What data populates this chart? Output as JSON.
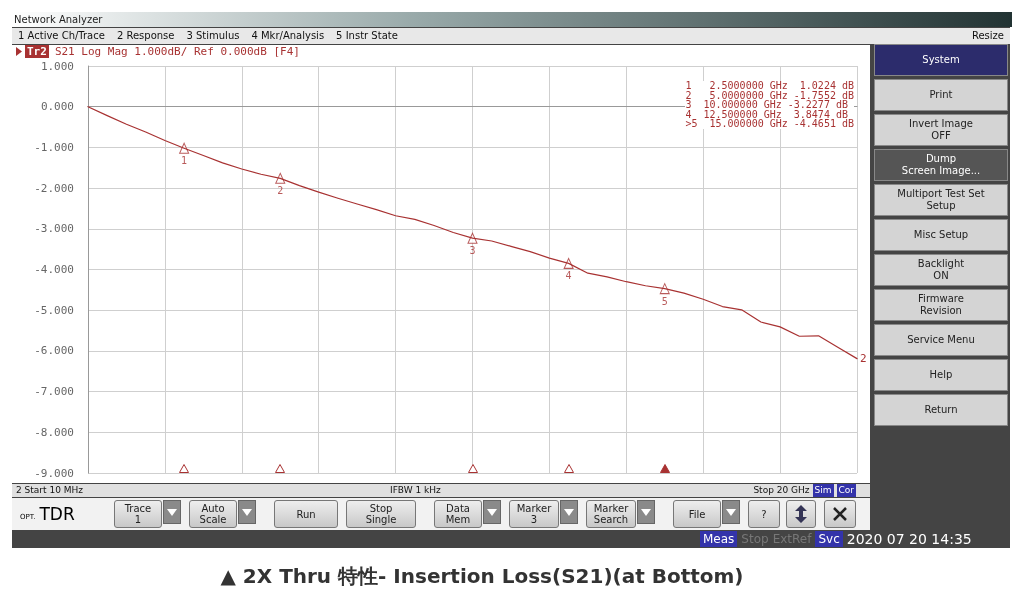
{
  "chart_data": {
    "type": "line",
    "title": "S21 Log Mag 1.000dB/ Ref 0.000dB [F4]",
    "categories": [
      null,
      null,
      null,
      null,
      null,
      null,
      null,
      null,
      null,
      null,
      null,
      null,
      null,
      null,
      null,
      null,
      null,
      null,
      null,
      null,
      null,
      null,
      null,
      null,
      null,
      null,
      null,
      null,
      null,
      null,
      null,
      null,
      null,
      null,
      null,
      null,
      null,
      null,
      null,
      null,
      null
    ],
    "series": [
      {
        "name": "2",
        "color": "#a83232",
        "values": [
          0,
          -0.22,
          -0.43,
          -0.62,
          -0.83,
          -1.02,
          -1.2,
          -1.38,
          -1.53,
          -1.66,
          -1.76,
          -1.94,
          -2.1,
          -2.25,
          -2.39,
          -2.53,
          -2.68,
          -2.77,
          -2.92,
          -3.09,
          -3.23,
          -3.3,
          -3.43,
          -3.56,
          -3.72,
          -3.85,
          -4.09,
          -4.18,
          -4.3,
          -4.4,
          -4.47,
          -4.58,
          -4.73,
          -4.91,
          -4.99,
          -5.29,
          -5.41,
          -5.64,
          -5.63,
          -5.91,
          -6.19
        ]
      },
      {
        "type": "scatter",
        "name": "1",
        "marker": "triangle",
        "color": "#a83232",
        "values": [
          null,
          null,
          null,
          null,
          null,
          -1.02,
          null,
          null,
          null,
          null,
          null,
          null,
          null,
          null,
          null,
          null,
          null,
          null,
          null,
          null,
          null,
          null,
          null,
          null,
          null,
          null,
          null,
          null,
          null,
          null,
          null,
          null,
          null,
          null,
          null,
          null,
          null,
          null,
          null,
          null,
          null
        ]
      },
      {
        "type": "scatter",
        "name": "2",
        "marker": "triangle",
        "color": "#a83232",
        "values": [
          null,
          null,
          null,
          null,
          null,
          null,
          null,
          null,
          null,
          null,
          -1.76,
          null,
          null,
          null,
          null,
          null,
          null,
          null,
          null,
          null,
          null,
          null,
          null,
          null,
          null,
          null,
          null,
          null,
          null,
          null,
          null,
          null,
          null,
          null,
          null,
          null,
          null,
          null,
          null,
          null,
          null
        ]
      },
      {
        "type": "scatter",
        "name": "3",
        "marker": "triangle",
        "color": "#a83232",
        "values": [
          null,
          null,
          null,
          null,
          null,
          null,
          null,
          null,
          null,
          null,
          null,
          null,
          null,
          null,
          null,
          null,
          null,
          null,
          null,
          null,
          -3.23,
          null,
          null,
          null,
          null,
          null,
          null,
          null,
          null,
          null,
          null,
          null,
          null,
          null,
          null,
          null,
          null,
          null,
          null,
          null,
          null
        ]
      },
      {
        "type": "scatter",
        "name": "4",
        "marker": "triangle",
        "color": "#a83232",
        "values": [
          null,
          null,
          null,
          null,
          null,
          null,
          null,
          null,
          null,
          null,
          null,
          null,
          null,
          null,
          null,
          null,
          null,
          null,
          null,
          null,
          null,
          null,
          null,
          null,
          null,
          -3.85,
          null,
          null,
          null,
          null,
          null,
          null,
          null,
          null,
          null,
          null,
          null,
          null,
          null,
          null,
          null
        ]
      },
      {
        "type": "scatter",
        "name": "5",
        "marker": "triangle",
        "color": "#a83232",
        "values": [
          null,
          null,
          null,
          null,
          null,
          null,
          null,
          null,
          null,
          null,
          null,
          null,
          null,
          null,
          null,
          null,
          null,
          null,
          null,
          null,
          null,
          null,
          null,
          null,
          null,
          null,
          null,
          null,
          null,
          null,
          -4.47,
          null,
          null,
          null,
          null,
          null,
          null,
          null,
          null,
          null,
          null
        ]
      }
    ],
    "ylim": [
      -9,
      1
    ],
    "yticks": [
      {
        "value": -9,
        "label": "-9.000"
      },
      {
        "value": -8,
        "label": "-8.000"
      },
      {
        "value": -7,
        "label": "-7.000"
      },
      {
        "value": -6,
        "label": "-6.000"
      },
      {
        "value": -5,
        "label": "-5.000"
      },
      {
        "value": -4,
        "label": "-4.000"
      },
      {
        "value": -3,
        "label": "-3.000"
      },
      {
        "value": -2,
        "label": "-2.000"
      },
      {
        "value": -1,
        "label": "-1.000"
      },
      {
        "value": 0,
        "label": "0.000"
      },
      {
        "value": 1,
        "label": "1.000"
      }
    ],
    "tick_labels": "y",
    "grid": true,
    "legend": false,
    "marker": "none",
    "line_style": "solid",
    "annotations": [
      "Network Analyzer",
      "1 Active Ch/Trace",
      "2 Response",
      "3 Stimulus",
      "4 Mkr/Analysis",
      "5 Instr State",
      "Resize",
      "Tr2",
      "1   2.5000000 GHz  1.0224 dB",
      "2   5.0000000 GHz -1.7552 dB",
      "3  10.000000 GHz -3.2277 dB",
      "4  12.500000 GHz  3.8474 dB",
      ">5  15.000000 GHz -4.4651 dB",
      "2 Start 10 MHz",
      "IFBW 1 kHz",
      "Stop 20 GHz",
      "Sim",
      "Cor",
      "System",
      "Print",
      "Invert Image\nOFF",
      "Dump\nScreen Image...",
      "Multiport Test Set\nSetup",
      "Misc Setup",
      "Backlight\nON",
      "Firmware\nRevision",
      "Service Menu",
      "Help",
      "Return",
      "OPT.",
      "TDR",
      "Trace\n1",
      "Auto\nScale",
      "Run",
      "Stop\nSingle",
      "Data\nMem",
      "Marker\n3",
      "Marker\nSearch",
      "File",
      "?",
      "Meas",
      "Stop",
      "ExtRef",
      "Svc",
      "2020 07 20 14:35",
      "▲ 2X Thru 特性- Insertion Loss(S21)(at Bottom)"
    ]
  }
}
